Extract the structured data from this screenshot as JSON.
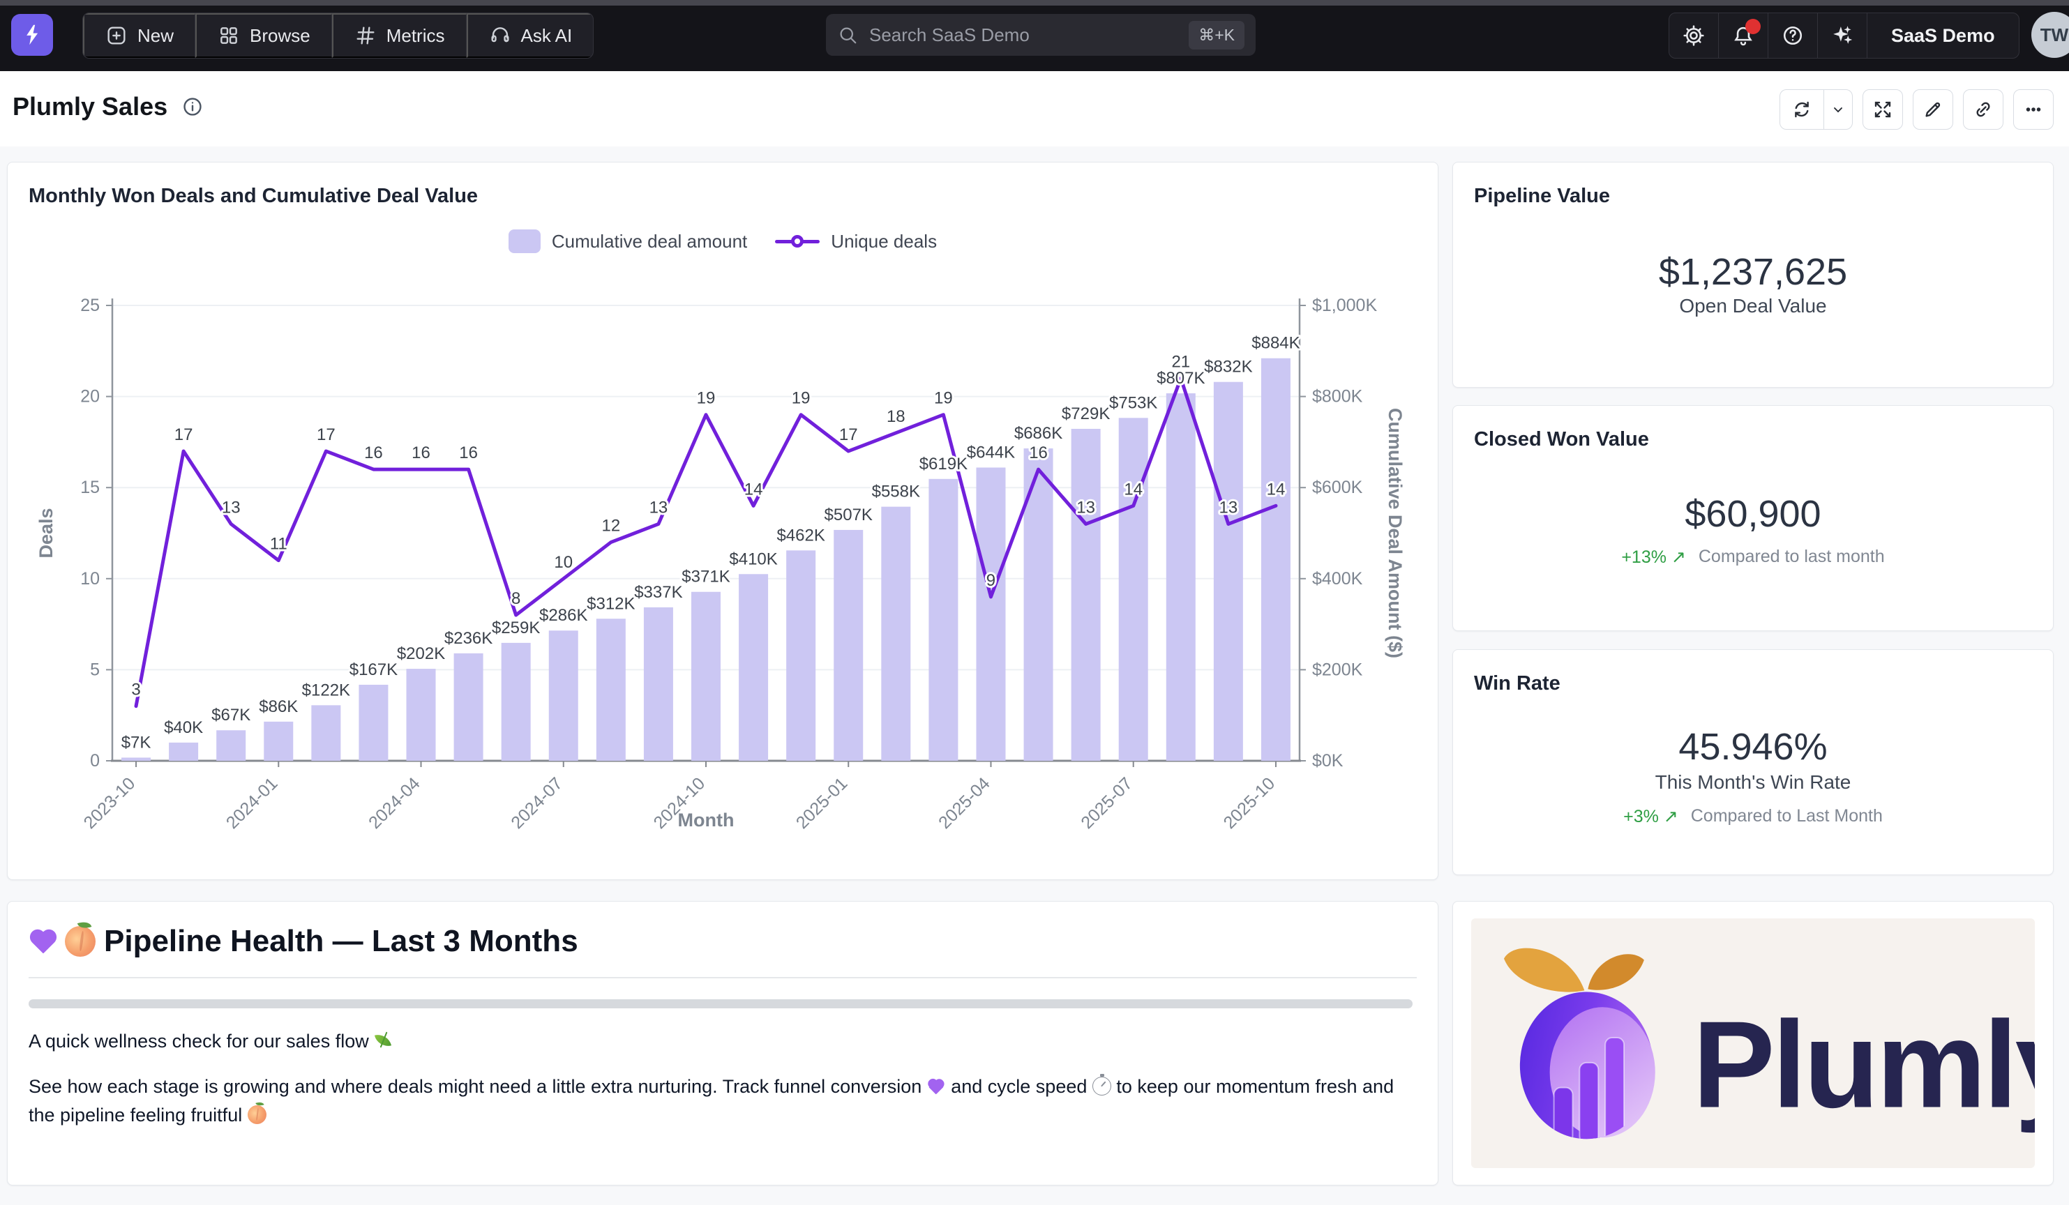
{
  "topnav": {
    "nav_items": [
      {
        "label": "New",
        "icon": "plus-square-icon"
      },
      {
        "label": "Browse",
        "icon": "grid-icon"
      },
      {
        "label": "Metrics",
        "icon": "hash-icon"
      },
      {
        "label": "Ask AI",
        "icon": "headset-sparkle-icon"
      }
    ],
    "search": {
      "placeholder": "Search SaaS Demo",
      "shortcut": "⌘+K"
    },
    "right_icons": [
      "gear-icon",
      "bell-icon",
      "help-icon",
      "sparkles-icon"
    ],
    "org_label": "SaaS Demo",
    "avatar_initials": "TW",
    "notification_badge_color": "#e03131",
    "brand_color": "#6e5ce8"
  },
  "header": {
    "title": "Plumly Sales",
    "toolbar_icons": [
      "refresh-icon",
      "chevron-down-icon",
      "expand-icon",
      "edit-icon",
      "link-icon",
      "more-icon"
    ]
  },
  "chart_data": {
    "type": "bar",
    "title": "Monthly Won Deals and Cumulative Deal Value",
    "categories": [
      "2023-10",
      "2023-11",
      "2023-12",
      "2024-01",
      "2024-02",
      "2024-03",
      "2024-04",
      "2024-05",
      "2024-06",
      "2024-07",
      "2024-08",
      "2024-09",
      "2024-10",
      "2024-11",
      "2024-12",
      "2025-01",
      "2025-02",
      "2025-03",
      "2025-04",
      "2025-05",
      "2025-06",
      "2025-07",
      "2025-08",
      "2025-09",
      "2025-10"
    ],
    "x_tick_labels": [
      "2023-10",
      "2024-01",
      "2024-04",
      "2024-07",
      "2024-10",
      "2025-01",
      "2025-04",
      "2025-07",
      "2025-10"
    ],
    "series": [
      {
        "name": "Cumulative deal amount",
        "type": "bar",
        "axis": "right",
        "color": "#cbc7f3",
        "values_k_usd": [
          7,
          40,
          67,
          86,
          122,
          167,
          202,
          236,
          259,
          286,
          312,
          337,
          371,
          410,
          462,
          507,
          558,
          619,
          644,
          686,
          729,
          753,
          807,
          832,
          884
        ],
        "labels": [
          "$7K",
          "$40K",
          "$67K",
          "$86K",
          "$122K",
          "$167K",
          "$202K",
          "$236K",
          "$259K",
          "$286K",
          "$312K",
          "$337K",
          "$371K",
          "$410K",
          "$462K",
          "$507K",
          "$558K",
          "$619K",
          "$644K",
          "$686K",
          "$729K",
          "$753K",
          "$807K",
          "$832K",
          "$884K"
        ]
      },
      {
        "name": "Unique deals",
        "type": "line",
        "axis": "left",
        "color": "#7120db",
        "values": [
          3,
          17,
          13,
          11,
          17,
          16,
          16,
          16,
          8,
          10,
          12,
          13,
          19,
          14,
          19,
          17,
          18,
          19,
          9,
          16,
          13,
          14,
          21,
          13,
          14
        ]
      }
    ],
    "xlabel": "Month",
    "left_axis": {
      "label": "Deals",
      "ticks": [
        0,
        5,
        10,
        15,
        20,
        25
      ],
      "range": [
        0,
        25
      ]
    },
    "right_axis": {
      "label": "Cumulative Deal Amount ($)",
      "ticks": [
        "$0K",
        "$200K",
        "$400K",
        "$600K",
        "$800K",
        "$1,000K"
      ],
      "range": [
        0,
        1000
      ]
    },
    "legend_position": "top",
    "grid": true
  },
  "kpis": [
    {
      "title": "Pipeline Value",
      "value": "$1,237,625",
      "subtitle": "Open Deal Value"
    },
    {
      "title": "Closed Won Value",
      "value": "$60,900",
      "delta": "+13% ↗",
      "comparison": "Compared to last month"
    },
    {
      "title": "Win Rate",
      "value": "45.946%",
      "subtitle": "This Month's Win Rate",
      "delta": "+3% ↗",
      "comparison": "Compared to Last Month"
    }
  ],
  "markdown_tile": {
    "heading_emojis": [
      "purple-heart",
      "peach"
    ],
    "heading": "Pipeline Health — Last 3 Months",
    "paragraphs": [
      {
        "segments": [
          {
            "text": "A quick wellness check for our sales flow "
          },
          {
            "icon": "herb"
          }
        ]
      },
      {
        "segments": [
          {
            "text": "See how each stage is growing and where deals might need a little extra nurturing. Track funnel conversion "
          },
          {
            "icon": "purple-heart"
          },
          {
            "text": " and cycle speed "
          },
          {
            "icon": "stopwatch"
          },
          {
            "text": " to keep our momentum fresh and the pipeline feeling fruitful "
          },
          {
            "icon": "peach"
          }
        ]
      }
    ]
  },
  "logo_tile": {
    "brand": "Plumly"
  }
}
